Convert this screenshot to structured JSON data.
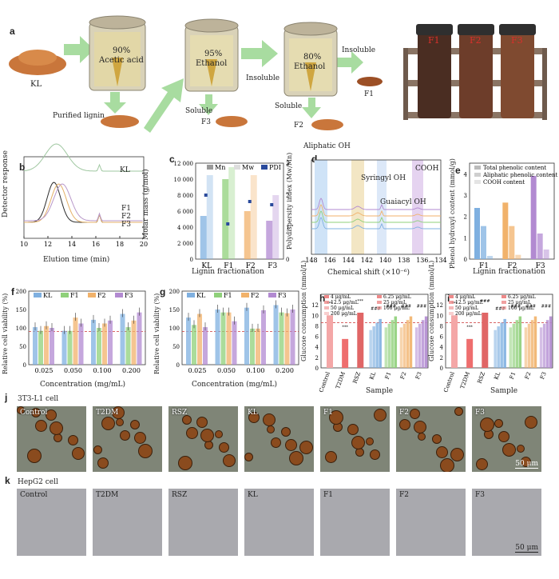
{
  "panel_letters": [
    "a",
    "b",
    "c",
    "d",
    "e",
    "f",
    "g",
    "h",
    "i",
    "j",
    "k"
  ],
  "panel_a": {
    "start_label": "KL",
    "vessels": [
      {
        "line1": "90%",
        "line2": "Acetic acid"
      },
      {
        "line1": "95%",
        "line2": "Ethanol"
      },
      {
        "line1": "80%",
        "line2": "Ethanol"
      }
    ],
    "purified": "Purified lignin",
    "soluble": "Soluble",
    "insoluble": "Insoluble",
    "f1": "F1",
    "f2": "F2",
    "f3": "F3",
    "jars": [
      "F1",
      "F2",
      "F3"
    ]
  },
  "chart_data": [
    {
      "panel": "b",
      "type": "line",
      "xlabel": "Elution time (min)",
      "ylabel": "Detector response",
      "xlim": [
        10,
        20
      ],
      "xticks": [
        10,
        12,
        14,
        16,
        18,
        20
      ],
      "series": [
        {
          "name": "KL",
          "color": "#9fc7a0"
        },
        {
          "name": "F1",
          "color": "#2d2d2d"
        },
        {
          "name": "F2",
          "color": "#e4b068"
        },
        {
          "name": "F3",
          "color": "#b898c9"
        }
      ]
    },
    {
      "panel": "c",
      "type": "bar",
      "categories": [
        "KL",
        "F1",
        "F2",
        "F3"
      ],
      "xlabel": "Lignin fractionation",
      "ylabel": "Molar mass (g/mol)",
      "y2label": "Polydispersity index (Mw/Mn)",
      "ylim": [
        0,
        12000
      ],
      "y2lim": [
        0,
        3
      ],
      "yticks": [
        "0",
        "2 000",
        "4 000",
        "6 000",
        "8 000",
        "10 000",
        "12 000"
      ],
      "y2ticks": [
        "0",
        "1",
        "2",
        "3"
      ],
      "legend": [
        "Mn",
        "Mw",
        "PDI"
      ],
      "mn": [
        5400,
        10000,
        6000,
        4800
      ],
      "mw": [
        10500,
        11500,
        10500,
        8000
      ],
      "pdi": [
        2.0,
        1.1,
        1.8,
        1.7
      ]
    },
    {
      "panel": "d",
      "type": "line",
      "xlabel": "Chemical shift (×10⁻⁶)",
      "xticks": [
        "148",
        "146",
        "144",
        "142",
        "140",
        "138",
        "136",
        "134"
      ],
      "annotations": [
        "Aliphatic OH",
        "Syringyl OH",
        "Guaiacyl OH",
        "COOH"
      ]
    },
    {
      "panel": "e",
      "type": "bar",
      "categories": [
        "F1",
        "F2",
        "F3"
      ],
      "xlabel": "Lignin fractionation",
      "ylabel": "Phenol hydroxyl content (mmol/g)",
      "ylim": [
        0,
        4.5
      ],
      "yticks": [
        "0",
        "1",
        "2",
        "3",
        "4"
      ],
      "legend": [
        "Total phenolic content",
        "Aliphatic phenolic content",
        "COOH content"
      ],
      "series": [
        {
          "name": "Total phenolic content",
          "values": [
            2.4,
            2.65,
            3.9
          ]
        },
        {
          "name": "Aliphatic phenolic content",
          "values": [
            1.55,
            1.55,
            1.2
          ]
        },
        {
          "name": "COOH content",
          "values": [
            0.15,
            0.2,
            0.45
          ]
        }
      ]
    },
    {
      "panel": "f",
      "type": "bar",
      "categories": [
        "0.025",
        "0.050",
        "0.100",
        "0.200"
      ],
      "xlabel": "Concentration (mg/mL)",
      "ylabel": "Relative cell viability (%)",
      "ylim": [
        0,
        200
      ],
      "yticks": [
        "0",
        "50",
        "100",
        "150",
        "200"
      ],
      "legend": [
        "KL",
        "F1",
        "F2",
        "F3"
      ],
      "series": [
        {
          "name": "KL",
          "values": [
            102,
            92,
            122,
            138
          ]
        },
        {
          "name": "F1",
          "values": [
            92,
            92,
            100,
            102
          ]
        },
        {
          "name": "F2",
          "values": [
            105,
            128,
            112,
            120
          ]
        },
        {
          "name": "F3",
          "values": [
            100,
            112,
            120,
            142
          ]
        }
      ]
    },
    {
      "panel": "g",
      "type": "bar",
      "categories": [
        "0.025",
        "0.050",
        "0.100",
        "0.200"
      ],
      "xlabel": "Concentration (mg/mL)",
      "ylabel": "Relative cell viability (%)",
      "ylim": [
        0,
        200
      ],
      "yticks": [
        "0",
        "50",
        "100",
        "150",
        "200"
      ],
      "legend": [
        "KL",
        "F1",
        "F2",
        "F3"
      ],
      "series": [
        {
          "name": "KL",
          "values": [
            128,
            150,
            155,
            162
          ]
        },
        {
          "name": "F1",
          "values": [
            108,
            142,
            98,
            142
          ]
        },
        {
          "name": "F2",
          "values": [
            138,
            142,
            98,
            140
          ]
        },
        {
          "name": "F3",
          "values": [
            102,
            118,
            148,
            150
          ]
        }
      ]
    },
    {
      "panel": "h",
      "type": "bar",
      "categories": [
        "Control",
        "T2DM",
        "RSZ",
        "KL",
        "F1",
        "F2",
        "F3"
      ],
      "xlabel": "Sample",
      "ylabel": "Glucose consumption (mmol/L)",
      "ylim": [
        0,
        14
      ],
      "yticks": [
        "0",
        "2",
        "4",
        "6",
        "8",
        "10",
        "12"
      ],
      "legend": [
        "4 μg/mL",
        "12.5 μg/mL",
        "50 μg/mL",
        "200 μg/mL",
        "6.25 μg/mL",
        "25 μg/mL",
        "100 μg/mL"
      ],
      "sig": [
        "***",
        "***",
        "***",
        "###",
        "###",
        "###",
        "###"
      ]
    },
    {
      "panel": "i",
      "type": "bar",
      "categories": [
        "Control",
        "T2DM",
        "RSZ",
        "KL",
        "F1",
        "F2",
        "F3"
      ],
      "xlabel": "Sample",
      "ylabel": "Glucose consumption (mmol/L)",
      "ylim": [
        0,
        14
      ],
      "yticks": [
        "0",
        "2",
        "4",
        "6",
        "8",
        "10",
        "12"
      ],
      "legend": [
        "4 μg/mL",
        "12.5 μg/mL",
        "50 μg/mL",
        "200 μg/mL",
        "6.25 μg/mL",
        "25 μg/mL",
        "100 μg/mL"
      ],
      "sig": [
        "***",
        "***",
        "###",
        "###",
        "###",
        "###",
        "###"
      ]
    }
  ],
  "panel_j": {
    "title": "3T3-L1 cell",
    "scale": "50 μm",
    "tiles": [
      "Control",
      "T2DM",
      "RSZ",
      "KL",
      "F1",
      "F2",
      "F3"
    ]
  },
  "panel_k": {
    "title": "HepG2 cell",
    "scale": "50 μm",
    "tiles": [
      "Control",
      "T2DM",
      "RSZ",
      "KL",
      "F1",
      "F2",
      "F3"
    ]
  },
  "colors": {
    "kl": "#7fb0e0",
    "f1": "#8fd07a",
    "f2": "#f1b26b",
    "f3": "#b28ad1",
    "arrow": "#a8dca0",
    "powder": "#c9763b"
  }
}
